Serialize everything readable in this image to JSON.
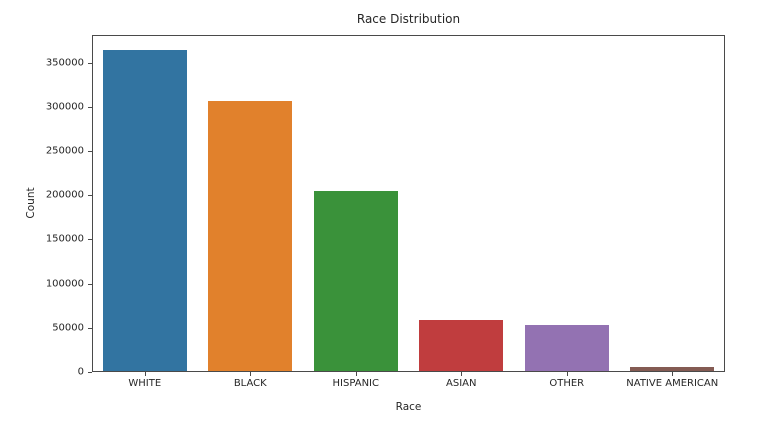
{
  "chart_data": {
    "type": "bar",
    "title": "Race Distribution",
    "xlabel": "Race",
    "ylabel": "Count",
    "categories": [
      "WHITE",
      "BLACK",
      "HISPANIC",
      "ASIAN",
      "OTHER",
      "NATIVE AMERICAN"
    ],
    "values": [
      363000,
      306000,
      204000,
      58000,
      52000,
      4000
    ],
    "bar_colors": [
      "#3274a1",
      "#e1812c",
      "#3a923a",
      "#c03d3e",
      "#9372b2",
      "#845b53"
    ],
    "yticks": [
      0,
      50000,
      100000,
      150000,
      200000,
      250000,
      300000,
      350000
    ],
    "ylim": [
      0,
      381500
    ],
    "bar_rel_width": 0.8,
    "grid": false,
    "legend_position": "none",
    "axis_color": "#4a4a4a",
    "text_color": "#262626",
    "background_color": "#ffffff"
  }
}
